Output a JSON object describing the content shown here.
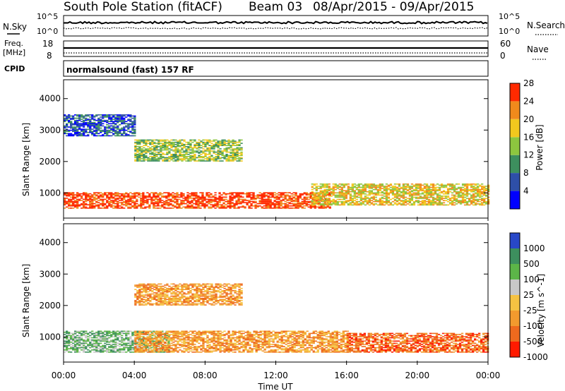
{
  "header": {
    "station": "South Pole Station (fitACF)",
    "beam": "Beam 03",
    "dates": "08/Apr/2015 - 09/Apr/2015"
  },
  "strip": {
    "nsky_label": "N.Sky",
    "nsearch_label": "N.Search",
    "freq_label_1": "Freq.",
    "freq_label_2": "[MHz]",
    "nave_label": "Nave",
    "cpid_label": "CPID",
    "left_ticks_top": [
      "10^5",
      "10^0"
    ],
    "right_ticks_top": [
      "10^5",
      "10^0"
    ],
    "left_ticks_freq": [
      "18",
      "8"
    ],
    "right_ticks_nave": [
      "60",
      "0"
    ],
    "cpid_text": "normalsound (fast) 157 RF"
  },
  "chart_data": [
    {
      "type": "heatmap",
      "name": "Power",
      "ylabel": "Slant Range [km]",
      "y_ticks": [
        "1000",
        "2000",
        "3000",
        "4000"
      ],
      "ylim": [
        200,
        4600
      ],
      "colorbar_label": "Power [dB]",
      "colorbar_ticks": [
        "4",
        "8",
        "12",
        "16",
        "20",
        "24",
        "28"
      ],
      "colorbar_colors": [
        "#0000ff",
        "#2e4fa8",
        "#3d8f5e",
        "#8dc63f",
        "#f2c81e",
        "#f08a1c",
        "#ff2a00"
      ],
      "bands": [
        {
          "range_km": [
            500,
            1000
          ],
          "level_db": 28,
          "coverage": "00:00-15:00"
        },
        {
          "range_km": [
            600,
            1300
          ],
          "level_db": 20,
          "coverage": "14:00-24:00"
        },
        {
          "range_km": [
            2000,
            2700
          ],
          "level_db": 16,
          "coverage": "04:00-10:00"
        },
        {
          "range_km": [
            2800,
            3500
          ],
          "level_db": 8,
          "coverage": "00:00-04:00"
        }
      ]
    },
    {
      "type": "heatmap",
      "name": "Velocity",
      "ylabel": "Slant Range [km]",
      "xlabel": "Time UT",
      "x_ticks": [
        "00:00",
        "04:00",
        "08:00",
        "12:00",
        "16:00",
        "20:00",
        "00:00"
      ],
      "y_ticks": [
        "1000",
        "2000",
        "3000",
        "4000"
      ],
      "ylim": [
        200,
        4600
      ],
      "colorbar_label": "Velocity [m s^-1]",
      "colorbar_ticks": [
        "1000",
        "500",
        "100",
        "25",
        "-25",
        "-100",
        "-500",
        "-1000"
      ],
      "colorbar_colors": [
        "#2848c8",
        "#3d8f5e",
        "#5cb548",
        "#c8c8c8",
        "#f5c242",
        "#f29a2e",
        "#ee6a1e",
        "#ff1a00"
      ],
      "bands": [
        {
          "range_km": [
            500,
            1200
          ],
          "level_ms": 100,
          "coverage": "00:00-06:00"
        },
        {
          "range_km": [
            500,
            1200
          ],
          "level_ms": -100,
          "coverage": "04:00-16:00"
        },
        {
          "range_km": [
            500,
            1100
          ],
          "level_ms": -500,
          "coverage": "16:00-24:00"
        },
        {
          "range_km": [
            2000,
            2700
          ],
          "level_ms": -100,
          "coverage": "04:00-10:00"
        }
      ]
    }
  ]
}
